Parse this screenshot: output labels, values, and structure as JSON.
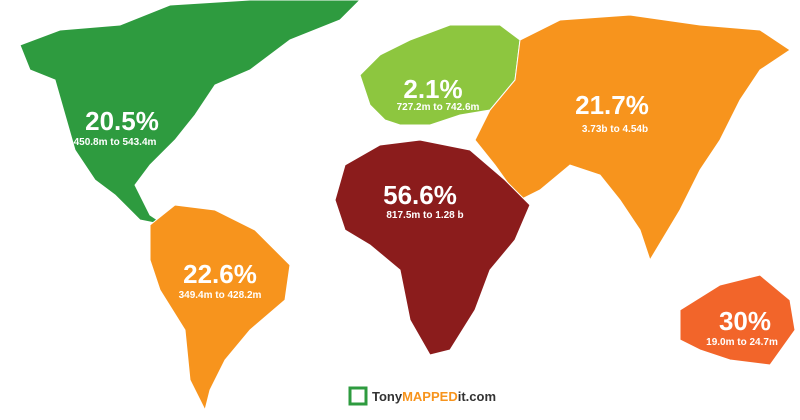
{
  "regions": [
    {
      "change": "20.5%",
      "range": "450.8m to 543.4m",
      "color": "#2e9b3f"
    },
    {
      "change": "2.1%",
      "range": "727.2m to 742.6m",
      "color": "#8dc63f"
    },
    {
      "change": "21.7%",
      "range": "3.73b to 4.54b",
      "color": "#f7941d"
    },
    {
      "change": "56.6%",
      "range": "817.5m to 1.28 b",
      "color": "#8b1c1c"
    },
    {
      "change": "22.6%",
      "range": "349.4m to 428.2m",
      "color": "#f7941d"
    },
    {
      "change": "30%",
      "range": "19.0m to 24.7m",
      "color": "#f2652a"
    }
  ],
  "brand": {
    "prefix": "Tony",
    "highlight": "MAPPED",
    "suffix": "it.com"
  }
}
